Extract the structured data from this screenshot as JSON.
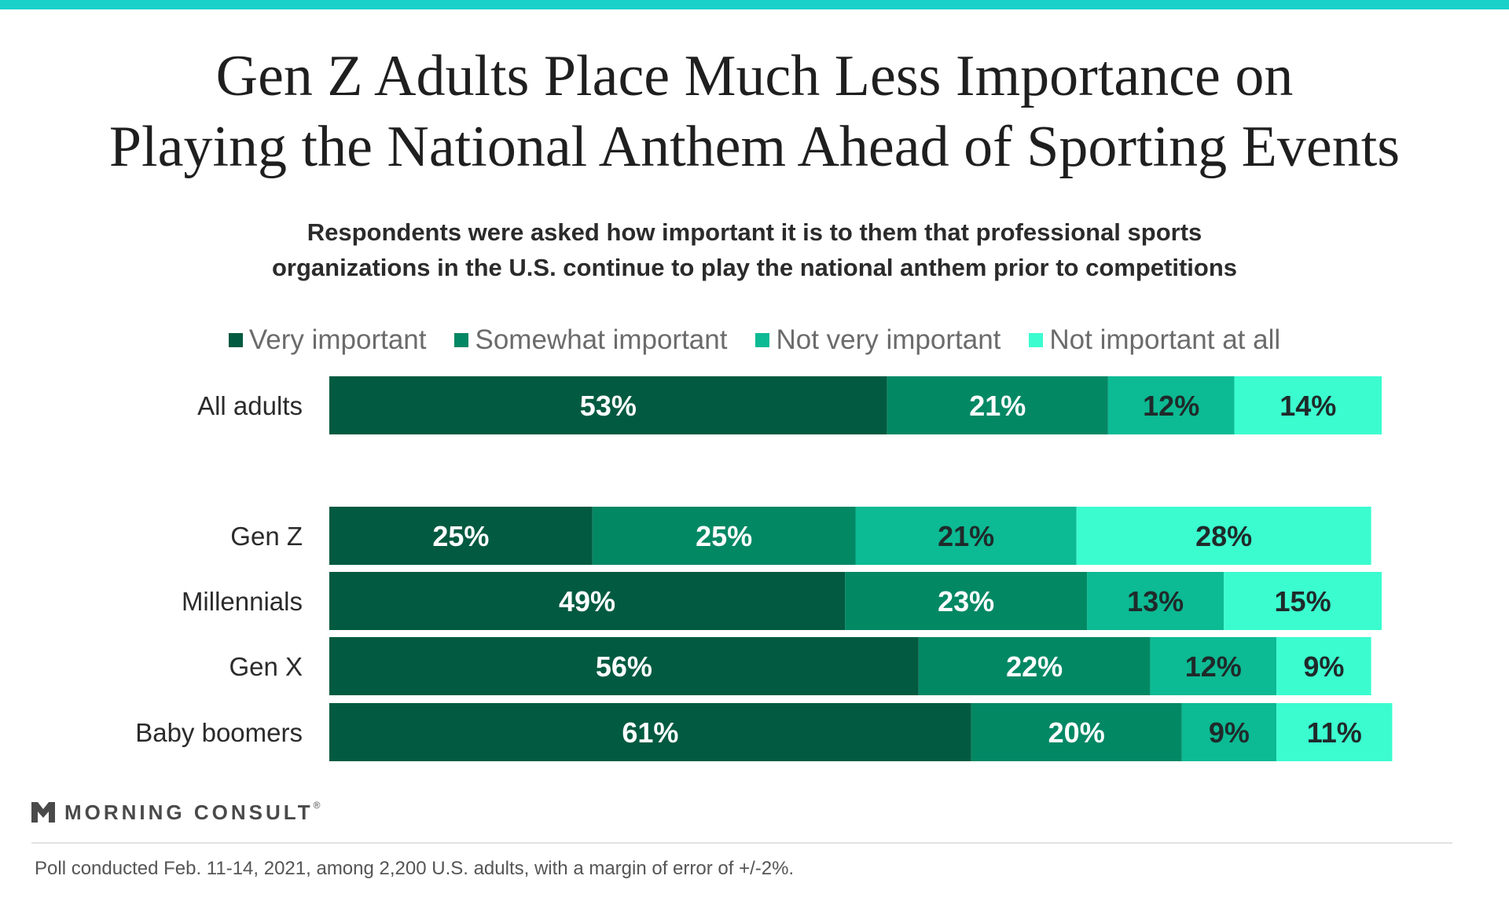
{
  "colors": {
    "top_bar": "#1ad1c9",
    "series": [
      "#025a40",
      "#038864",
      "#0cba93",
      "#3bfccf"
    ],
    "label_light": "#ffffff",
    "label_dark": "#1f2a2a"
  },
  "header": {
    "title_line1": "Gen Z Adults Place Much Less Importance on",
    "title_line2": "Playing the National Anthem Ahead of Sporting Events",
    "subtitle_line1": "Respondents were asked how important it is to them that professional sports",
    "subtitle_line2": "organizations in the U.S. continue to play the national anthem prior to competitions"
  },
  "chart_data": {
    "type": "bar",
    "orientation": "horizontal",
    "stacked": true,
    "categories": [
      "All adults",
      "Gen Z",
      "Millennials",
      "Gen X",
      "Baby boomers"
    ],
    "series": [
      {
        "name": "Very important",
        "values": [
          53,
          25,
          49,
          56,
          61
        ],
        "labels": [
          "53%",
          "25%",
          "49%",
          "56%",
          "61%"
        ]
      },
      {
        "name": "Somewhat important",
        "values": [
          21,
          25,
          23,
          22,
          20
        ],
        "labels": [
          "21%",
          "25%",
          "23%",
          "22%",
          "20%"
        ]
      },
      {
        "name": "Not very important",
        "values": [
          12,
          21,
          13,
          12,
          9
        ],
        "labels": [
          "12%",
          "21%",
          "13%",
          "12%",
          "9%"
        ]
      },
      {
        "name": "Not important at all",
        "values": [
          14,
          28,
          15,
          9,
          11
        ],
        "labels": [
          "14%",
          "28%",
          "15%",
          "9%",
          "11%"
        ]
      }
    ],
    "legend_position": "top-center",
    "grid": false
  },
  "footer": {
    "brand_name": "MORNING CONSULT",
    "brand_mark": "®",
    "note": "Poll conducted Feb. 11-14, 2021, among 2,200 U.S. adults, with a margin of error of +/-2%."
  }
}
